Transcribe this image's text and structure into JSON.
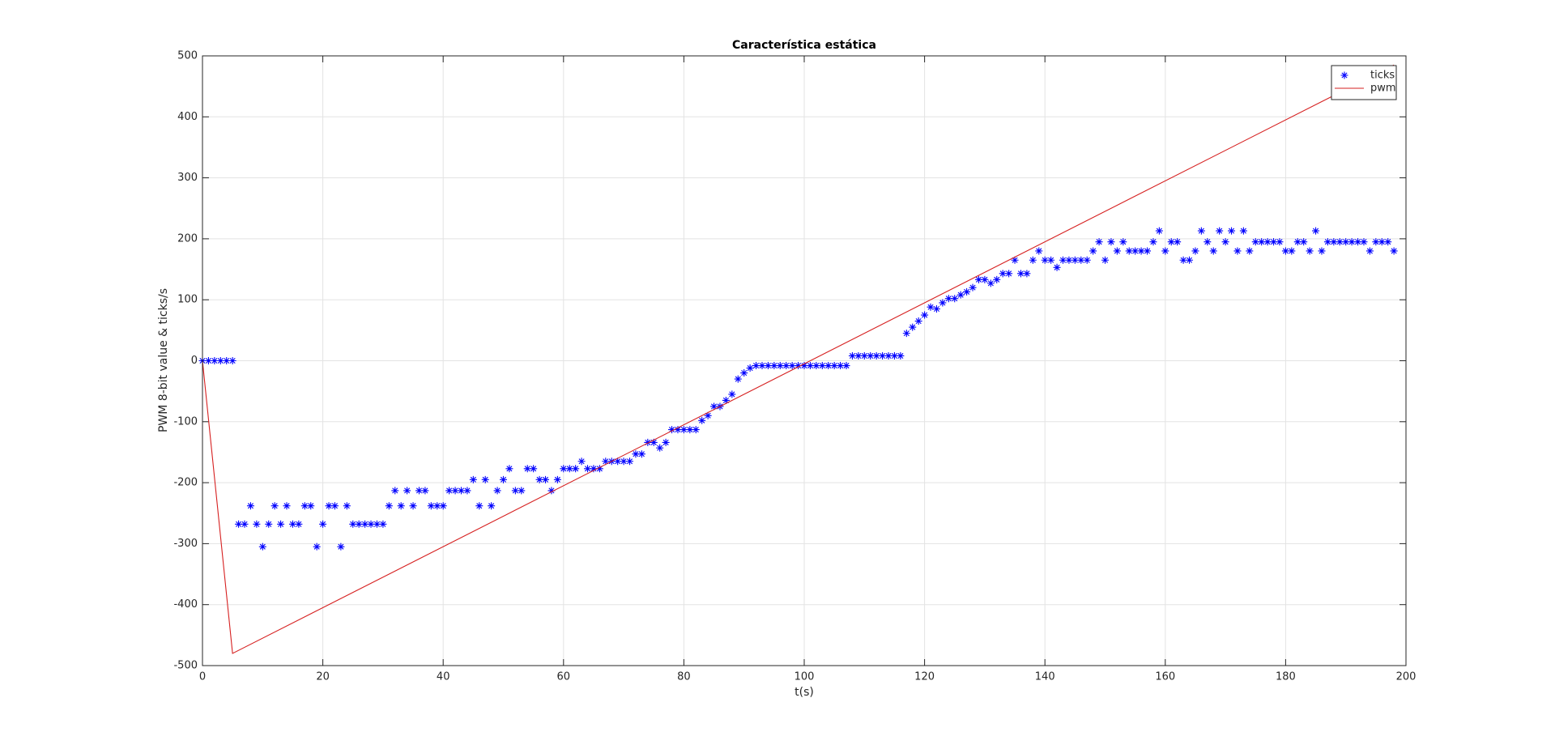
{
  "chart_data": {
    "type": "line",
    "title": "Característica estática",
    "x_label": "t(s)",
    "y_label": "PWM 8-bit value &  ticks/s",
    "xlim": [
      0,
      200
    ],
    "xticks": [
      0,
      20,
      40,
      60,
      80,
      100,
      120,
      140,
      160,
      180,
      200
    ],
    "ylim": [
      -500,
      500
    ],
    "yticks": [
      -500,
      -400,
      -300,
      -200,
      -100,
      0,
      100,
      200,
      300,
      400,
      500
    ],
    "grid": true,
    "legend": "northeast",
    "series": [
      {
        "name": "ticks",
        "type": "scatter",
        "marker": "*",
        "color": "#0000ff",
        "x": [
          0,
          1,
          2,
          3,
          4,
          5,
          6,
          7,
          8,
          9,
          10,
          11,
          12,
          13,
          14,
          15,
          16,
          17,
          18,
          19,
          20,
          21,
          22,
          23,
          24,
          25,
          26,
          27,
          28,
          29,
          30,
          31,
          32,
          33,
          34,
          35,
          36,
          37,
          38,
          39,
          40,
          41,
          42,
          43,
          44,
          45,
          46,
          47,
          48,
          49,
          50,
          51,
          52,
          53,
          54,
          55,
          56,
          57,
          58,
          59,
          60,
          61,
          62,
          63,
          64,
          65,
          66,
          67,
          68,
          69,
          70,
          71,
          72,
          73,
          74,
          75,
          76,
          77,
          78,
          79,
          80,
          81,
          82,
          83,
          84,
          85,
          86,
          87,
          88,
          89,
          90,
          91,
          92,
          93,
          94,
          95,
          96,
          97,
          98,
          99,
          100,
          101,
          102,
          103,
          104,
          105,
          106,
          107,
          108,
          109,
          110,
          111,
          112,
          113,
          114,
          115,
          116,
          117,
          118,
          119,
          120,
          121,
          122,
          123,
          124,
          125,
          126,
          127,
          128,
          129,
          130,
          131,
          132,
          133,
          134,
          135,
          136,
          137,
          138,
          139,
          140,
          141,
          142,
          143,
          144,
          145,
          146,
          147,
          148,
          149,
          150,
          151,
          152,
          153,
          154,
          155,
          156,
          157,
          158,
          159,
          160,
          161,
          162,
          163,
          164,
          165,
          166,
          167,
          168,
          169,
          170,
          171,
          172,
          173,
          174,
          175,
          176,
          177,
          178,
          179,
          180,
          181,
          182,
          183,
          184,
          185,
          186,
          187,
          188,
          189,
          190,
          191,
          192,
          193,
          194,
          195,
          196,
          197,
          198
        ],
        "values": [
          0,
          0,
          0,
          0,
          0,
          0,
          -268,
          -268,
          -238,
          -268,
          -305,
          -268,
          -238,
          -268,
          -238,
          -268,
          -268,
          -238,
          -238,
          -305,
          -268,
          -238,
          -238,
          -305,
          -238,
          -268,
          -268,
          -268,
          -268,
          -268,
          -268,
          -238,
          -213,
          -238,
          -213,
          -238,
          -213,
          -213,
          -238,
          -238,
          -238,
          -213,
          -213,
          -213,
          -213,
          -195,
          -238,
          -195,
          -238,
          -213,
          -195,
          -177,
          -213,
          -213,
          -177,
          -177,
          -195,
          -195,
          -213,
          -195,
          -177,
          -177,
          -177,
          -165,
          -177,
          -177,
          -177,
          -165,
          -165,
          -165,
          -165,
          -165,
          -153,
          -153,
          -134,
          -134,
          -143,
          -134,
          -113,
          -113,
          -113,
          -113,
          -113,
          -98,
          -90,
          -75,
          -75,
          -65,
          -55,
          -30,
          -20,
          -12,
          -8,
          -8,
          -8,
          -8,
          -8,
          -8,
          -8,
          -8,
          -8,
          -8,
          -8,
          -8,
          -8,
          -8,
          -8,
          -8,
          8,
          8,
          8,
          8,
          8,
          8,
          8,
          8,
          8,
          45,
          55,
          65,
          75,
          88,
          85,
          95,
          102,
          102,
          108,
          113,
          120,
          133,
          133,
          127,
          133,
          143,
          143,
          165,
          143,
          143,
          165,
          180,
          165,
          165,
          153,
          165,
          165,
          165,
          165,
          165,
          180,
          195,
          165,
          195,
          180,
          195,
          180,
          180,
          180,
          180,
          195,
          213,
          180,
          195,
          195,
          165,
          165,
          180,
          213,
          195,
          180,
          213,
          195,
          213,
          180,
          213,
          180,
          195,
          195,
          195,
          195,
          195,
          180,
          180,
          195,
          195,
          180,
          213,
          180,
          195,
          195,
          195,
          195,
          195,
          195,
          195,
          180,
          195,
          195,
          195,
          180
        ]
      },
      {
        "name": "pwm",
        "type": "line",
        "color": "#d62020",
        "x": [
          0,
          5,
          198
        ],
        "values": [
          0,
          -480,
          485
        ]
      }
    ]
  }
}
